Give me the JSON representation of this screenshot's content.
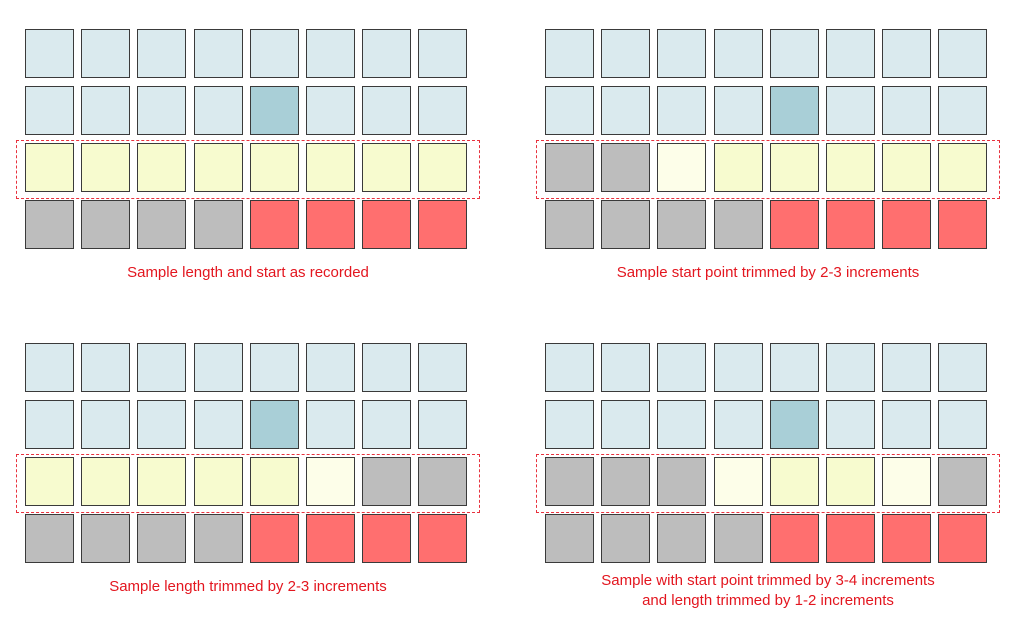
{
  "colors": {
    "bluelight": "#daeaee",
    "bluedark": "#a9cfd7",
    "yellow": "#f7fbcf",
    "cream": "#fdfee9",
    "gray": "#bdbdbd",
    "red": "#ff6f6f",
    "caption": "#e3161f",
    "highlight_border": "#e8323e"
  },
  "panels": [
    {
      "caption_lines": [
        "Sample length and start as recorded"
      ],
      "rows": [
        [
          "bluelight",
          "bluelight",
          "bluelight",
          "bluelight",
          "bluelight",
          "bluelight",
          "bluelight",
          "bluelight"
        ],
        [
          "bluelight",
          "bluelight",
          "bluelight",
          "bluelight",
          "bluedark",
          "bluelight",
          "bluelight",
          "bluelight"
        ],
        [
          "yellow",
          "yellow",
          "yellow",
          "yellow",
          "yellow",
          "yellow",
          "yellow",
          "yellow"
        ],
        [
          "gray",
          "gray",
          "gray",
          "gray",
          "red",
          "red",
          "red",
          "red"
        ]
      ]
    },
    {
      "caption_lines": [
        "Sample start point trimmed by 2-3 increments"
      ],
      "rows": [
        [
          "bluelight",
          "bluelight",
          "bluelight",
          "bluelight",
          "bluelight",
          "bluelight",
          "bluelight",
          "bluelight"
        ],
        [
          "bluelight",
          "bluelight",
          "bluelight",
          "bluelight",
          "bluedark",
          "bluelight",
          "bluelight",
          "bluelight"
        ],
        [
          "gray",
          "gray",
          "cream",
          "yellow",
          "yellow",
          "yellow",
          "yellow",
          "yellow"
        ],
        [
          "gray",
          "gray",
          "gray",
          "gray",
          "red",
          "red",
          "red",
          "red"
        ]
      ]
    },
    {
      "caption_lines": [
        "Sample length trimmed by 2-3 increments"
      ],
      "rows": [
        [
          "bluelight",
          "bluelight",
          "bluelight",
          "bluelight",
          "bluelight",
          "bluelight",
          "bluelight",
          "bluelight"
        ],
        [
          "bluelight",
          "bluelight",
          "bluelight",
          "bluelight",
          "bluedark",
          "bluelight",
          "bluelight",
          "bluelight"
        ],
        [
          "yellow",
          "yellow",
          "yellow",
          "yellow",
          "yellow",
          "cream",
          "gray",
          "gray"
        ],
        [
          "gray",
          "gray",
          "gray",
          "gray",
          "red",
          "red",
          "red",
          "red"
        ]
      ]
    },
    {
      "caption_lines": [
        "Sample with start point trimmed by 3-4 increments",
        "and length trimmed by 1-2 increments"
      ],
      "rows": [
        [
          "bluelight",
          "bluelight",
          "bluelight",
          "bluelight",
          "bluelight",
          "bluelight",
          "bluelight",
          "bluelight"
        ],
        [
          "bluelight",
          "bluelight",
          "bluelight",
          "bluelight",
          "bluedark",
          "bluelight",
          "bluelight",
          "bluelight"
        ],
        [
          "gray",
          "gray",
          "gray",
          "cream",
          "yellow",
          "yellow",
          "cream",
          "gray"
        ],
        [
          "gray",
          "gray",
          "gray",
          "gray",
          "red",
          "red",
          "red",
          "red"
        ]
      ]
    }
  ]
}
